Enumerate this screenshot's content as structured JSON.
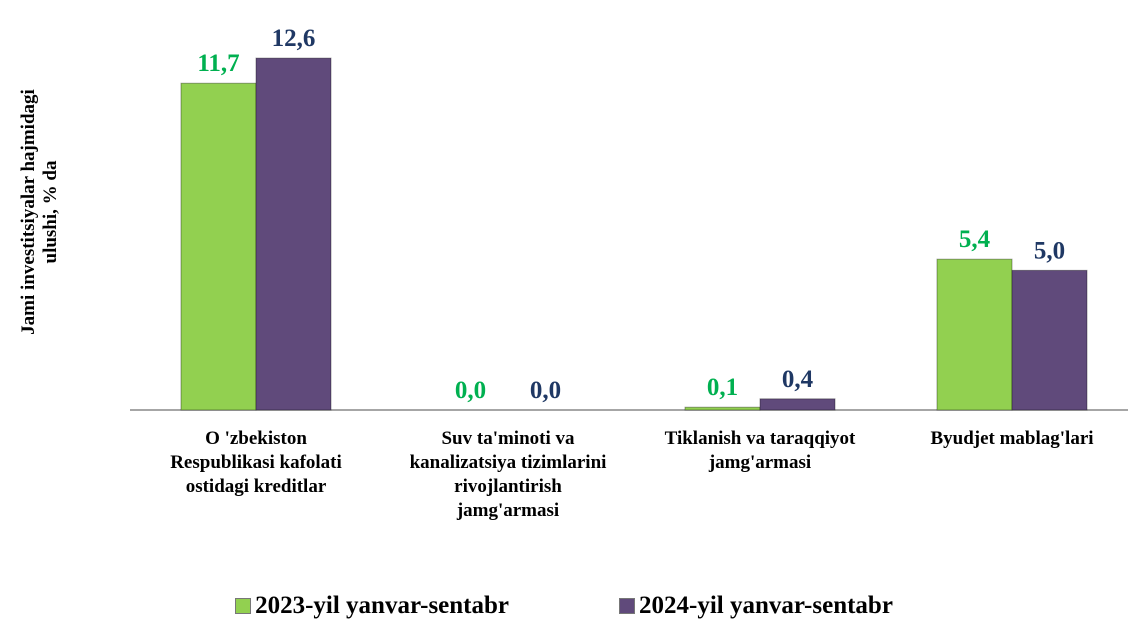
{
  "chart_data": {
    "type": "bar",
    "y_label": "Jami investitsiyalar hajmidagi ulushi, % da",
    "categories": [
      "O 'zbekiston Respublikasi kafolati ostidagi kreditlar",
      "Suv ta'minoti va kanalizatsiya tizimlarini rivojlantirish jamg'armasi",
      "Tiklanish va taraqqiyot jamg'armasi",
      "Byudjet mablag'lari"
    ],
    "series": [
      {
        "name": "2023-yil yanvar-sentabr",
        "color": "#92d050",
        "label_color": "#00b050",
        "values": [
          11.7,
          0.0,
          0.1,
          5.4
        ],
        "value_labels": [
          "11,7",
          "0,0",
          "0,1",
          "5,4"
        ]
      },
      {
        "name": "2024-yil yanvar-sentabr",
        "color": "#604a7b",
        "label_color": "#1f3864",
        "values": [
          12.6,
          0.0,
          0.4,
          5.0
        ],
        "value_labels": [
          "12,6",
          "0,0",
          "0,4",
          "5,0"
        ]
      }
    ],
    "ylim": [
      0,
      14
    ],
    "legend": "bottom"
  }
}
